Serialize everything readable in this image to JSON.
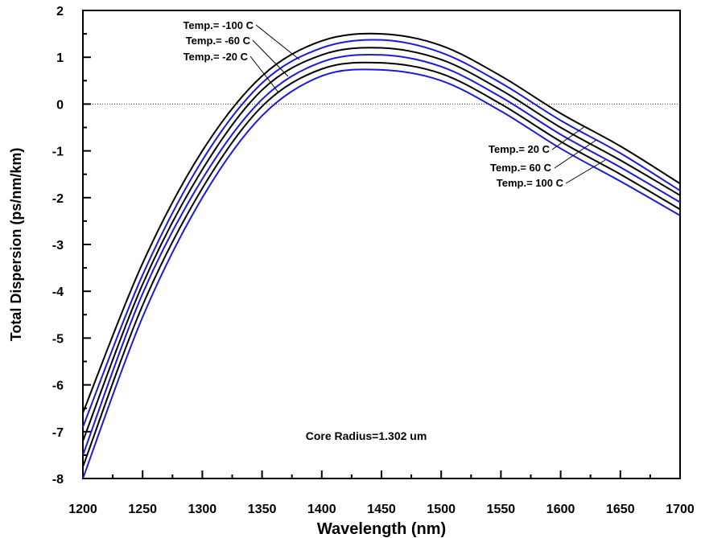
{
  "chart_data": {
    "type": "line",
    "title": "",
    "xlabel": "Wavelength (nm)",
    "ylabel": "Total Dispersion (ps/nm/km)",
    "xlim": [
      1200,
      1700
    ],
    "ylim": [
      -8,
      2
    ],
    "xticks": [
      1200,
      1250,
      1300,
      1350,
      1400,
      1450,
      1500,
      1550,
      1600,
      1650,
      1700
    ],
    "yticks": [
      2,
      1,
      0,
      -1,
      -2,
      -3,
      -4,
      -5,
      -6,
      -7,
      -8
    ],
    "grid": false,
    "reference_line": {
      "y": 0,
      "style": "dotted"
    },
    "annotation": "Core Radius=1.302 um",
    "x": [
      1200,
      1250,
      1300,
      1350,
      1400,
      1450,
      1500,
      1550,
      1600,
      1650,
      1700
    ],
    "series": [
      {
        "name": "Temp.= -100 C",
        "color": "#000000",
        "values": [
          -6.6,
          -3.4,
          -1.0,
          0.6,
          1.35,
          1.5,
          1.25,
          0.6,
          -0.2,
          -0.9,
          -1.7
        ]
      },
      {
        "name": "Temp.= -60 C",
        "color": "#1a1adf",
        "values": [
          -6.9,
          -3.65,
          -1.2,
          0.45,
          1.2,
          1.37,
          1.1,
          0.45,
          -0.35,
          -1.05,
          -1.85
        ]
      },
      {
        "name": "Temp.= -20 C",
        "color": "#000000",
        "values": [
          -7.2,
          -3.85,
          -1.4,
          0.3,
          1.05,
          1.2,
          0.95,
          0.3,
          -0.5,
          -1.2,
          -1.95
        ]
      },
      {
        "name": "Temp.= 20 C",
        "color": "#1a1adf",
        "values": [
          -7.5,
          -4.05,
          -1.6,
          0.1,
          0.9,
          1.05,
          0.8,
          0.15,
          -0.65,
          -1.35,
          -2.1
        ]
      },
      {
        "name": "Temp.= 60 C",
        "color": "#000000",
        "values": [
          -7.75,
          -4.3,
          -1.8,
          -0.05,
          0.75,
          0.88,
          0.65,
          0.0,
          -0.8,
          -1.5,
          -2.25
        ]
      },
      {
        "name": "Temp.= 100 C",
        "color": "#1a1adf",
        "values": [
          -8.0,
          -4.55,
          -2.0,
          -0.25,
          0.6,
          0.73,
          0.5,
          -0.15,
          -0.95,
          -1.65,
          -2.38
        ]
      }
    ]
  }
}
